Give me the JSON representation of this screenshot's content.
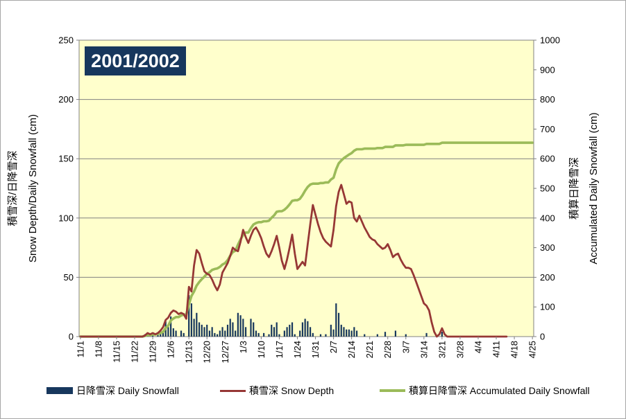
{
  "chart": {
    "title": "2001/2002",
    "colors": {
      "bar": "#17375D",
      "depth_line": "#963735",
      "accum_line": "#9BBB59",
      "plot_bg": "#FFFFCC",
      "gridline": "#808080",
      "axis_line": "#808080",
      "title_bg": "#17375D",
      "title_fg": "#FFFFFF",
      "text": "#000000"
    },
    "left_axis": {
      "title_ja": "積雪深/日降雪深",
      "title_en": "Snow Depth/Daily Snowfall (cm)",
      "min": 0,
      "max": 250,
      "tick_interval": 50,
      "tick_labels": [
        "0",
        "50",
        "100",
        "150",
        "200",
        "250"
      ]
    },
    "right_axis": {
      "title_ja": "積算日降雪深",
      "title_en": "Accumulated Daily Snowfall (cm)",
      "min": 0,
      "max": 1000,
      "tick_interval": 100,
      "tick_labels": [
        "0",
        "100",
        "200",
        "300",
        "400",
        "500",
        "600",
        "700",
        "800",
        "900",
        "1000"
      ]
    }
  },
  "legend": {
    "daily_snowfall": "日降雪深 Daily Snowfall",
    "snow_depth": "積雪深 Snow Depth",
    "accumulated": "積算日降雪深 Accumulated Daily Snowfall"
  },
  "chart_data": {
    "type": "combo",
    "start_date": "11/1",
    "end_date": "4/25",
    "days": 176,
    "x_tick_labels": [
      "11/1",
      "11/8",
      "11/15",
      "11/22",
      "11/29",
      "12/6",
      "12/13",
      "12/20",
      "12/27",
      "1/3",
      "1/10",
      "1/17",
      "1/24",
      "1/31",
      "2/7",
      "2/14",
      "2/21",
      "2/28",
      "3/7",
      "3/14",
      "3/21",
      "3/28",
      "4/4",
      "4/11",
      "4/18",
      "4/25"
    ],
    "x_tick_every_days": 7,
    "left_axis_range": [
      0,
      250
    ],
    "right_axis_range": [
      0,
      1000
    ],
    "grid_every_left_units": 50,
    "series": [
      {
        "name": "日降雪深 Daily Snowfall",
        "type": "bar",
        "axis": "left",
        "values": [
          0,
          0,
          0,
          0,
          0,
          0,
          0,
          0,
          0,
          0,
          0,
          0,
          0,
          0,
          0,
          0,
          0,
          0,
          0,
          0,
          0,
          0,
          0,
          0,
          0,
          2,
          3,
          0,
          2,
          0,
          2,
          3,
          4,
          13,
          8,
          17,
          7,
          5,
          0,
          5,
          3,
          0,
          35,
          28,
          15,
          20,
          12,
          10,
          8,
          10,
          5,
          8,
          3,
          2,
          5,
          8,
          5,
          10,
          15,
          12,
          5,
          20,
          18,
          15,
          8,
          0,
          15,
          12,
          5,
          3,
          0,
          3,
          0,
          2,
          10,
          8,
          12,
          2,
          0,
          5,
          8,
          10,
          12,
          2,
          0,
          5,
          12,
          15,
          13,
          8,
          3,
          0,
          0,
          2,
          0,
          2,
          0,
          10,
          6,
          28,
          20,
          10,
          8,
          6,
          6,
          5,
          8,
          5,
          0,
          0,
          2,
          0,
          0,
          0,
          0,
          2,
          0,
          0,
          4,
          0,
          0,
          0,
          5,
          0,
          0,
          0,
          2,
          0,
          0,
          0,
          0,
          0,
          0,
          0,
          3,
          0,
          0,
          0,
          0,
          0,
          4,
          0,
          0,
          0,
          0,
          0,
          0,
          0,
          0,
          0,
          0,
          0,
          0,
          0,
          0,
          0,
          0,
          0,
          0,
          0,
          0,
          0,
          0,
          0,
          0,
          0,
          0,
          0,
          0,
          0,
          0,
          0,
          0,
          0,
          0,
          0
        ]
      },
      {
        "name": "積雪深 Snow Depth",
        "type": "line",
        "axis": "left",
        "values": [
          0,
          0,
          0,
          0,
          0,
          0,
          0,
          0,
          0,
          0,
          0,
          0,
          0,
          0,
          0,
          0,
          0,
          0,
          0,
          0,
          0,
          0,
          0,
          0,
          0,
          1,
          3,
          2,
          3,
          2,
          3,
          5,
          8,
          14,
          16,
          20,
          22,
          21,
          19,
          20,
          19,
          15,
          42,
          38,
          60,
          73,
          70,
          62,
          55,
          53,
          52,
          48,
          43,
          39,
          44,
          54,
          58,
          62,
          68,
          75,
          73,
          72,
          80,
          90,
          84,
          79,
          85,
          90,
          92,
          88,
          83,
          76,
          70,
          67,
          72,
          78,
          85,
          75,
          64,
          57,
          65,
          75,
          86,
          70,
          57,
          60,
          63,
          60,
          78,
          95,
          111,
          103,
          95,
          88,
          83,
          80,
          78,
          76,
          90,
          110,
          122,
          128,
          120,
          112,
          114,
          113,
          100,
          97,
          102,
          97,
          92,
          88,
          84,
          82,
          81,
          78,
          76,
          74,
          75,
          78,
          73,
          67,
          69,
          70,
          65,
          61,
          58,
          58,
          57,
          52,
          46,
          40,
          34,
          28,
          26,
          22,
          12,
          4,
          0,
          2,
          7,
          2,
          0,
          0,
          0,
          0,
          0,
          0,
          0,
          0,
          0,
          0,
          0,
          0,
          0,
          0,
          0,
          0,
          0,
          0,
          0,
          0,
          0,
          0,
          0,
          0,
          null,
          null,
          null,
          null,
          null,
          null,
          null,
          null,
          null,
          null
        ]
      },
      {
        "name": "積算日降雪深 Accumulated Daily Snowfall",
        "type": "line",
        "axis": "right",
        "derived": "cumulative_sum_of_daily_snowfall",
        "final_value": 654
      }
    ]
  }
}
